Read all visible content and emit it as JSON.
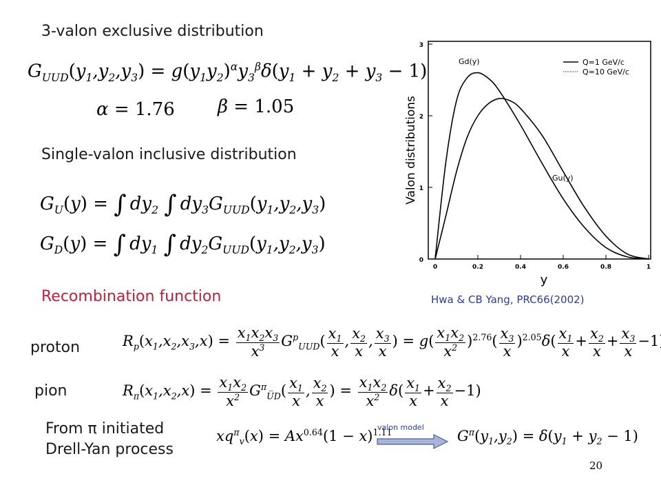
{
  "headings": {
    "three_valon": "3-valon exclusive distribution",
    "single_valon": "Single-valon inclusive distribution",
    "recombination": "Recombination function",
    "proton": "proton",
    "pion": "pion",
    "from_pi_line1": "From π initiated",
    "from_pi_line2": "Drell-Yan process"
  },
  "equations": {
    "alpha_value": "1.76",
    "beta_value": "1.05",
    "proton_exp1": "2.76",
    "proton_exp2": "2.05",
    "pion_exp1": "0.64",
    "pion_exp2": "1.11"
  },
  "arrow_label": "valon model",
  "citation": "Hwa & CB Yang, PRC66(2002)",
  "page_number": "20",
  "chart_data": {
    "type": "line",
    "xlabel": "y",
    "ylabel": "Valon distributions",
    "xlim": [
      0,
      1
    ],
    "ylim": [
      0,
      3
    ],
    "xticks": [
      "0",
      "0.2",
      "0.4",
      "0.6",
      "0.8",
      "1"
    ],
    "yticks": [
      "0",
      "1",
      "2",
      "3"
    ],
    "legend_position": "top-right",
    "legend": [
      "Q=1 GeV/c",
      "Q=10 GeV/c"
    ],
    "curve_labels": {
      "gd": "Gd(y)",
      "gu": "Gu(y)"
    },
    "series": [
      {
        "label": "Gd(y)",
        "x": [
          0,
          0.05,
          0.1,
          0.15,
          0.2,
          0.25,
          0.3,
          0.4,
          0.5,
          0.6,
          0.7,
          0.8,
          0.9,
          1.0
        ],
        "values": [
          0,
          1.35,
          2.21,
          2.53,
          2.6,
          2.52,
          2.35,
          1.87,
          1.34,
          0.84,
          0.44,
          0.16,
          0.03,
          0
        ]
      },
      {
        "label": "Gu(y)",
        "x": [
          0,
          0.05,
          0.1,
          0.15,
          0.2,
          0.25,
          0.3,
          0.35,
          0.4,
          0.5,
          0.6,
          0.7,
          0.8,
          0.9,
          1.0
        ],
        "values": [
          0,
          0.6,
          1.22,
          1.7,
          2.0,
          2.17,
          2.24,
          2.21,
          2.1,
          1.73,
          1.22,
          0.72,
          0.32,
          0.07,
          0
        ]
      }
    ]
  }
}
